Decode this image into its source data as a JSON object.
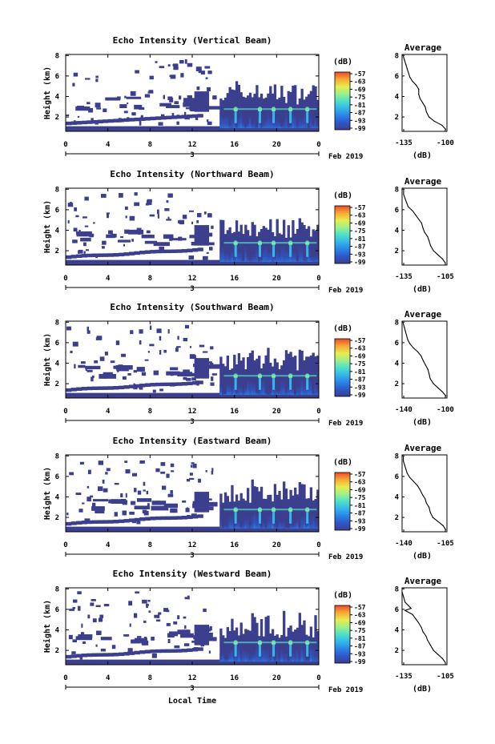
{
  "figure": {
    "xlabel_bottom": "Local Time",
    "date_label": "Feb 2019"
  },
  "colorbar": {
    "unit": "(dB)",
    "ticks": [
      "-57",
      "-63",
      "-69",
      "-75",
      "-81",
      "-87",
      "-93",
      "-99"
    ]
  },
  "colorscale": [
    "#3b3f8e",
    "#2f57c8",
    "#2a86e6",
    "#35b7ea",
    "#4fe0c8",
    "#9ef08a",
    "#e8ec4e",
    "#f7a935",
    "#ea4b2a"
  ],
  "chart_data": [
    {
      "type": "heatmap",
      "title": "Echo Intensity (Vertical Beam)",
      "ylabel": "Height (km)",
      "x_ticks": [
        "0",
        "4",
        "8",
        "12",
        "16",
        "20",
        "0"
      ],
      "day_label": "3",
      "y_ticks": [
        "2",
        "4",
        "6",
        "8"
      ],
      "xlim": [
        0,
        24
      ],
      "ylim": [
        0.6,
        8.1
      ],
      "profile": {
        "title": "Average",
        "xlabel": "(dB)",
        "x_ticks": [
          "-135",
          "-100"
        ],
        "xlim": [
          -135,
          -100
        ],
        "y_ticks": [
          "2",
          "4",
          "6",
          "8"
        ],
        "ylim": [
          0.6,
          8.1
        ],
        "points": [
          [
            -101,
            0.8
          ],
          [
            -104,
            1.2
          ],
          [
            -110,
            1.6
          ],
          [
            -114,
            2.0
          ],
          [
            -116,
            2.5
          ],
          [
            -117,
            3.0
          ],
          [
            -119,
            3.4
          ],
          [
            -121,
            3.8
          ],
          [
            -122,
            4.2
          ],
          [
            -122,
            4.7
          ],
          [
            -124,
            5.1
          ],
          [
            -127,
            5.5
          ],
          [
            -129,
            5.9
          ],
          [
            -130,
            6.3
          ],
          [
            -131,
            6.7
          ],
          [
            -132,
            7.1
          ],
          [
            -133,
            7.5
          ],
          [
            -134,
            7.9
          ]
        ]
      }
    },
    {
      "type": "heatmap",
      "title": "Echo Intensity (Northward Beam)",
      "ylabel": "Height (km)",
      "x_ticks": [
        "0",
        "4",
        "8",
        "12",
        "16",
        "20",
        "0"
      ],
      "day_label": "3",
      "y_ticks": [
        "2",
        "4",
        "6",
        "8"
      ],
      "xlim": [
        0,
        24
      ],
      "ylim": [
        0.6,
        8.1
      ],
      "profile": {
        "title": "Average",
        "xlabel": "(dB)",
        "x_ticks": [
          "-135",
          "-105"
        ],
        "xlim": [
          -135,
          -105
        ],
        "y_ticks": [
          "2",
          "4",
          "6",
          "8"
        ],
        "ylim": [
          0.6,
          8.1
        ],
        "points": [
          [
            -106,
            0.8
          ],
          [
            -108,
            1.2
          ],
          [
            -111,
            1.6
          ],
          [
            -114,
            2.0
          ],
          [
            -116,
            2.5
          ],
          [
            -117,
            3.0
          ],
          [
            -118,
            3.4
          ],
          [
            -120,
            3.8
          ],
          [
            -121,
            4.2
          ],
          [
            -122,
            4.7
          ],
          [
            -124,
            5.1
          ],
          [
            -126,
            5.5
          ],
          [
            -128,
            5.9
          ],
          [
            -131,
            6.3
          ],
          [
            -132,
            6.7
          ],
          [
            -133,
            7.1
          ],
          [
            -134,
            7.5
          ],
          [
            -134,
            7.9
          ]
        ]
      }
    },
    {
      "type": "heatmap",
      "title": "Echo Intensity (Southward Beam)",
      "ylabel": "Height (km)",
      "x_ticks": [
        "0",
        "4",
        "8",
        "12",
        "16",
        "20",
        "0"
      ],
      "day_label": "3",
      "y_ticks": [
        "2",
        "4",
        "6",
        "8"
      ],
      "xlim": [
        0,
        24
      ],
      "ylim": [
        0.6,
        8.1
      ],
      "profile": {
        "title": "Average",
        "xlabel": "(dB)",
        "x_ticks": [
          "-140",
          "-100"
        ],
        "xlim": [
          -140,
          -100
        ],
        "y_ticks": [
          "2",
          "4",
          "6",
          "8"
        ],
        "ylim": [
          0.6,
          8.1
        ],
        "points": [
          [
            -101,
            0.8
          ],
          [
            -104,
            1.2
          ],
          [
            -108,
            1.6
          ],
          [
            -112,
            2.0
          ],
          [
            -115,
            2.5
          ],
          [
            -116,
            3.0
          ],
          [
            -117,
            3.4
          ],
          [
            -119,
            3.8
          ],
          [
            -121,
            4.2
          ],
          [
            -123,
            4.7
          ],
          [
            -126,
            5.1
          ],
          [
            -130,
            5.5
          ],
          [
            -133,
            5.9
          ],
          [
            -135,
            6.3
          ],
          [
            -136,
            6.7
          ],
          [
            -137,
            7.1
          ],
          [
            -138,
            7.5
          ],
          [
            -139,
            7.9
          ]
        ]
      }
    },
    {
      "type": "heatmap",
      "title": "Echo Intensity (Eastward Beam)",
      "ylabel": "Height (km)",
      "x_ticks": [
        "0",
        "4",
        "8",
        "12",
        "16",
        "20",
        "0"
      ],
      "day_label": "3",
      "y_ticks": [
        "2",
        "4",
        "6",
        "8"
      ],
      "xlim": [
        0,
        24
      ],
      "ylim": [
        0.6,
        8.1
      ],
      "profile": {
        "title": "Average",
        "xlabel": "(dB)",
        "x_ticks": [
          "-140",
          "-105"
        ],
        "xlim": [
          -140,
          -105
        ],
        "y_ticks": [
          "2",
          "4",
          "6",
          "8"
        ],
        "ylim": [
          0.6,
          8.1
        ],
        "points": [
          [
            -106,
            0.8
          ],
          [
            -108,
            1.2
          ],
          [
            -112,
            1.6
          ],
          [
            -116,
            2.0
          ],
          [
            -118,
            2.5
          ],
          [
            -119,
            3.0
          ],
          [
            -121,
            3.4
          ],
          [
            -122,
            3.8
          ],
          [
            -124,
            4.2
          ],
          [
            -126,
            4.7
          ],
          [
            -128,
            5.1
          ],
          [
            -131,
            5.5
          ],
          [
            -134,
            5.9
          ],
          [
            -136,
            6.3
          ],
          [
            -137,
            6.7
          ],
          [
            -138,
            7.1
          ],
          [
            -139,
            7.5
          ],
          [
            -139,
            7.9
          ]
        ]
      }
    },
    {
      "type": "heatmap",
      "title": "Echo Intensity (Westward Beam)",
      "ylabel": "Height (km)",
      "x_ticks": [
        "0",
        "4",
        "8",
        "12",
        "16",
        "20",
        "0"
      ],
      "day_label": "3",
      "y_ticks": [
        "2",
        "4",
        "6",
        "8"
      ],
      "xlim": [
        0,
        24
      ],
      "ylim": [
        0.6,
        8.1
      ],
      "profile": {
        "title": "Average",
        "xlabel": "(dB)",
        "x_ticks": [
          "-135",
          "-105"
        ],
        "xlim": [
          -135,
          -105
        ],
        "y_ticks": [
          "2",
          "4",
          "6",
          "8"
        ],
        "ylim": [
          0.6,
          8.1
        ],
        "points": [
          [
            -106,
            0.8
          ],
          [
            -108,
            1.2
          ],
          [
            -111,
            1.6
          ],
          [
            -114,
            2.0
          ],
          [
            -116,
            2.5
          ],
          [
            -118,
            3.0
          ],
          [
            -119,
            3.4
          ],
          [
            -121,
            3.8
          ],
          [
            -122,
            4.2
          ],
          [
            -124,
            4.7
          ],
          [
            -126,
            5.1
          ],
          [
            -128,
            5.5
          ],
          [
            -133,
            5.9
          ],
          [
            -129,
            6.1
          ],
          [
            -131,
            6.4
          ],
          [
            -133,
            6.7
          ],
          [
            -134,
            7.2
          ],
          [
            -135,
            7.7
          ]
        ]
      }
    }
  ]
}
